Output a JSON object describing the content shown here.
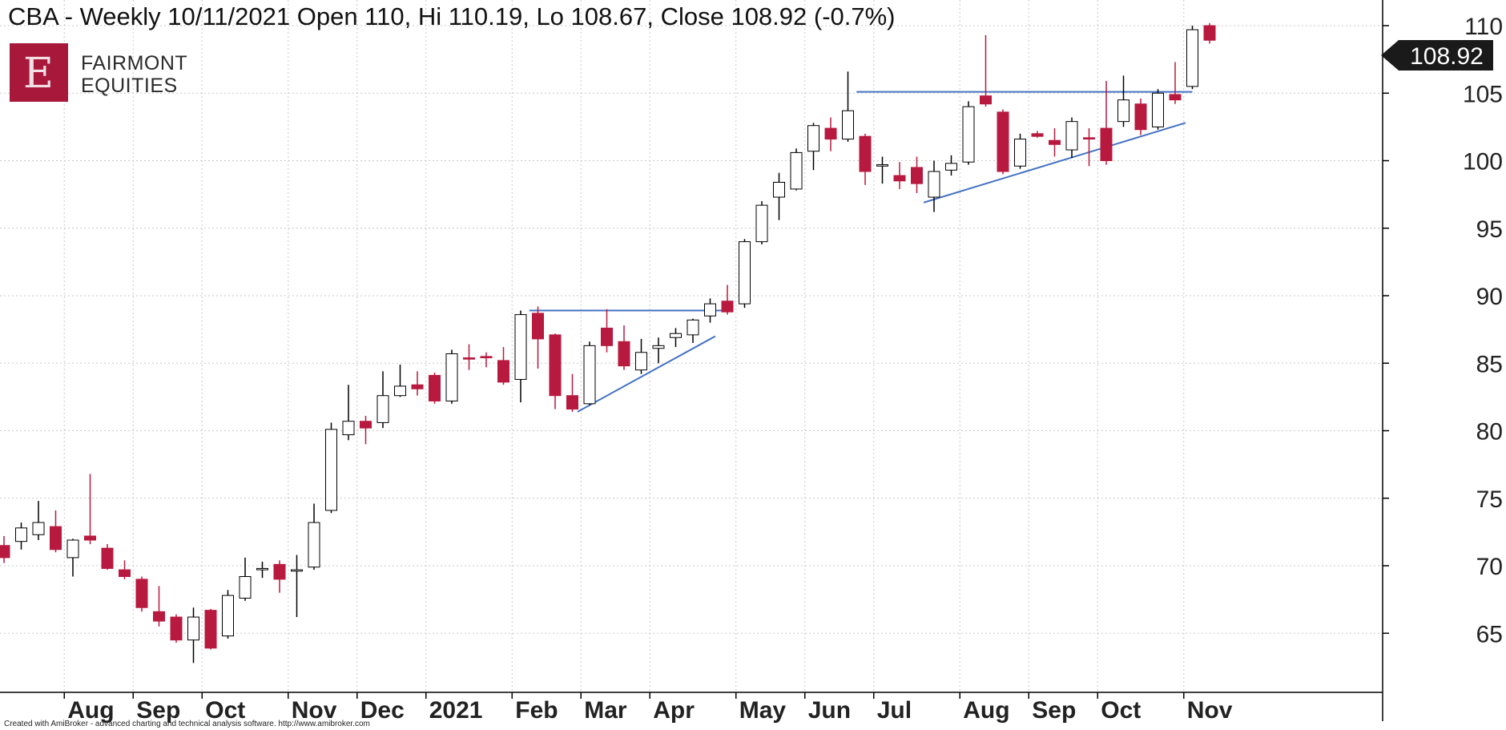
{
  "chart_data": {
    "type": "candlestick",
    "title": "CBA - Weekly 10/11/2021 Open 110, Hi 110.19, Lo 108.67, Close 108.92 (-0.7%)",
    "ylim": [
      61.8,
      111.9
    ],
    "y_ticks": [
      65,
      70,
      75,
      80,
      85,
      90,
      95,
      100,
      105,
      110
    ],
    "last_price_label": "108.92",
    "grid": true,
    "legend": "none",
    "colors": {
      "up": "#ffffff",
      "down": "#b8193e",
      "outline": "#000000",
      "trendline": "#4472c4",
      "grid": "#c8c8c8"
    },
    "x_ticks": [
      {
        "label": "Aug",
        "week": 4
      },
      {
        "label": "Sep",
        "week": 8
      },
      {
        "label": "Oct",
        "week": 12
      },
      {
        "label": "Nov",
        "week": 17
      },
      {
        "label": "Dec",
        "week": 21
      },
      {
        "label": "2021",
        "week": 25
      },
      {
        "label": "Feb",
        "week": 30
      },
      {
        "label": "Mar",
        "week": 34
      },
      {
        "label": "Apr",
        "week": 38
      },
      {
        "label": "May",
        "week": 43
      },
      {
        "label": "Jun",
        "week": 47
      },
      {
        "label": "Jul",
        "week": 51
      },
      {
        "label": "Aug",
        "week": 56
      },
      {
        "label": "Sep",
        "week": 60
      },
      {
        "label": "Oct",
        "week": 64
      },
      {
        "label": "Nov",
        "week": 69
      }
    ],
    "candles": [
      {
        "o": 71.5,
        "h": 72.2,
        "l": 70.2,
        "c": 70.6
      },
      {
        "o": 71.8,
        "h": 73.2,
        "l": 71.2,
        "c": 72.8
      },
      {
        "o": 72.3,
        "h": 74.8,
        "l": 71.9,
        "c": 73.2
      },
      {
        "o": 72.9,
        "h": 74.1,
        "l": 71.0,
        "c": 71.2
      },
      {
        "o": 70.6,
        "h": 72.0,
        "l": 69.2,
        "c": 71.9
      },
      {
        "o": 72.2,
        "h": 76.8,
        "l": 71.6,
        "c": 71.9
      },
      {
        "o": 71.3,
        "h": 71.6,
        "l": 69.7,
        "c": 69.8
      },
      {
        "o": 69.7,
        "h": 70.4,
        "l": 69.0,
        "c": 69.2
      },
      {
        "o": 69.0,
        "h": 69.2,
        "l": 66.6,
        "c": 66.9
      },
      {
        "o": 66.6,
        "h": 68.5,
        "l": 65.5,
        "c": 65.9
      },
      {
        "o": 66.2,
        "h": 66.4,
        "l": 64.3,
        "c": 64.5
      },
      {
        "o": 64.5,
        "h": 66.9,
        "l": 62.8,
        "c": 66.2
      },
      {
        "o": 66.7,
        "h": 66.8,
        "l": 63.8,
        "c": 63.9
      },
      {
        "o": 64.8,
        "h": 68.2,
        "l": 64.6,
        "c": 67.8
      },
      {
        "o": 67.6,
        "h": 70.6,
        "l": 67.4,
        "c": 69.2
      },
      {
        "o": 69.7,
        "h": 70.3,
        "l": 69.1,
        "c": 69.8
      },
      {
        "o": 70.1,
        "h": 70.4,
        "l": 68.0,
        "c": 69.0
      },
      {
        "o": 69.6,
        "h": 70.8,
        "l": 66.2,
        "c": 69.7
      },
      {
        "o": 69.9,
        "h": 74.6,
        "l": 69.7,
        "c": 73.2
      },
      {
        "o": 74.1,
        "h": 80.6,
        "l": 73.9,
        "c": 80.1
      },
      {
        "o": 79.7,
        "h": 83.4,
        "l": 79.3,
        "c": 80.7
      },
      {
        "o": 80.7,
        "h": 81.1,
        "l": 79.0,
        "c": 80.2
      },
      {
        "o": 80.6,
        "h": 84.4,
        "l": 80.2,
        "c": 82.6
      },
      {
        "o": 82.6,
        "h": 84.9,
        "l": 82.5,
        "c": 83.3
      },
      {
        "o": 83.4,
        "h": 84.4,
        "l": 82.6,
        "c": 83.1
      },
      {
        "o": 84.1,
        "h": 84.3,
        "l": 82.0,
        "c": 82.2
      },
      {
        "o": 82.2,
        "h": 86.0,
        "l": 82.0,
        "c": 85.7
      },
      {
        "o": 85.4,
        "h": 86.4,
        "l": 84.5,
        "c": 85.3
      },
      {
        "o": 85.5,
        "h": 85.8,
        "l": 84.7,
        "c": 85.4
      },
      {
        "o": 85.2,
        "h": 86.2,
        "l": 83.4,
        "c": 83.6
      },
      {
        "o": 83.8,
        "h": 88.9,
        "l": 82.1,
        "c": 88.6
      },
      {
        "o": 88.7,
        "h": 89.2,
        "l": 84.6,
        "c": 86.8
      },
      {
        "o": 87.1,
        "h": 87.2,
        "l": 81.6,
        "c": 82.6
      },
      {
        "o": 82.6,
        "h": 84.2,
        "l": 81.4,
        "c": 81.6
      },
      {
        "o": 82.0,
        "h": 86.6,
        "l": 81.9,
        "c": 86.3
      },
      {
        "o": 87.6,
        "h": 89.0,
        "l": 85.8,
        "c": 86.3
      },
      {
        "o": 86.6,
        "h": 87.8,
        "l": 84.5,
        "c": 84.8
      },
      {
        "o": 84.5,
        "h": 86.8,
        "l": 84.2,
        "c": 85.8
      },
      {
        "o": 86.1,
        "h": 86.9,
        "l": 85.0,
        "c": 86.3
      },
      {
        "o": 86.9,
        "h": 87.6,
        "l": 86.2,
        "c": 87.2
      },
      {
        "o": 87.1,
        "h": 88.3,
        "l": 86.5,
        "c": 88.2
      },
      {
        "o": 88.5,
        "h": 89.8,
        "l": 88.0,
        "c": 89.4
      },
      {
        "o": 89.6,
        "h": 90.8,
        "l": 88.6,
        "c": 88.8
      },
      {
        "o": 89.4,
        "h": 94.2,
        "l": 89.1,
        "c": 94.0
      },
      {
        "o": 94.0,
        "h": 97.0,
        "l": 93.8,
        "c": 96.7
      },
      {
        "o": 97.3,
        "h": 99.1,
        "l": 95.6,
        "c": 98.4
      },
      {
        "o": 97.9,
        "h": 100.9,
        "l": 97.8,
        "c": 100.6
      },
      {
        "o": 100.7,
        "h": 102.8,
        "l": 99.3,
        "c": 102.6
      },
      {
        "o": 102.4,
        "h": 103.2,
        "l": 100.7,
        "c": 101.6
      },
      {
        "o": 101.6,
        "h": 106.6,
        "l": 101.4,
        "c": 103.7
      },
      {
        "o": 101.8,
        "h": 102.0,
        "l": 98.2,
        "c": 99.2
      },
      {
        "o": 99.6,
        "h": 100.3,
        "l": 98.3,
        "c": 99.7
      },
      {
        "o": 98.9,
        "h": 99.9,
        "l": 97.9,
        "c": 98.5
      },
      {
        "o": 99.5,
        "h": 100.3,
        "l": 97.6,
        "c": 98.3
      },
      {
        "o": 97.3,
        "h": 100.0,
        "l": 96.2,
        "c": 99.2
      },
      {
        "o": 99.3,
        "h": 100.4,
        "l": 98.9,
        "c": 99.8
      },
      {
        "o": 99.9,
        "h": 104.4,
        "l": 99.7,
        "c": 104.0
      },
      {
        "o": 104.8,
        "h": 109.3,
        "l": 104.0,
        "c": 104.2
      },
      {
        "o": 103.6,
        "h": 103.8,
        "l": 99.0,
        "c": 99.2
      },
      {
        "o": 99.6,
        "h": 102.0,
        "l": 99.4,
        "c": 101.6
      },
      {
        "o": 102.0,
        "h": 102.2,
        "l": 101.7,
        "c": 101.8
      },
      {
        "o": 101.5,
        "h": 102.4,
        "l": 100.3,
        "c": 101.2
      },
      {
        "o": 100.8,
        "h": 103.2,
        "l": 100.2,
        "c": 102.9
      },
      {
        "o": 101.7,
        "h": 102.4,
        "l": 99.6,
        "c": 101.6
      },
      {
        "o": 102.4,
        "h": 105.9,
        "l": 99.7,
        "c": 100.0
      },
      {
        "o": 102.9,
        "h": 106.3,
        "l": 102.5,
        "c": 104.5
      },
      {
        "o": 104.2,
        "h": 104.6,
        "l": 101.9,
        "c": 102.3
      },
      {
        "o": 102.5,
        "h": 105.3,
        "l": 102.3,
        "c": 105.0
      },
      {
        "o": 104.9,
        "h": 107.3,
        "l": 104.2,
        "c": 104.5
      },
      {
        "o": 105.5,
        "h": 110.0,
        "l": 105.3,
        "c": 109.7
      },
      {
        "o": 110.0,
        "h": 110.19,
        "l": 108.67,
        "c": 108.92
      }
    ],
    "trendlines": [
      {
        "x1": 30.5,
        "y1": 88.9,
        "x2": 42.3,
        "y2": 88.9
      },
      {
        "x1": 33.3,
        "y1": 81.4,
        "x2": 41.3,
        "y2": 87.0
      },
      {
        "x1": 49.5,
        "y1": 105.1,
        "x2": 69.0,
        "y2": 105.1
      },
      {
        "x1": 53.4,
        "y1": 96.9,
        "x2": 68.6,
        "y2": 102.8
      }
    ]
  },
  "logo": {
    "letter": "E",
    "line1": "FAIRMONT",
    "line2": "EQUITIES"
  },
  "footer": {
    "credit": "Created with AmiBroker - advanced charting and technical analysis software. http://www.amibroker.com"
  }
}
